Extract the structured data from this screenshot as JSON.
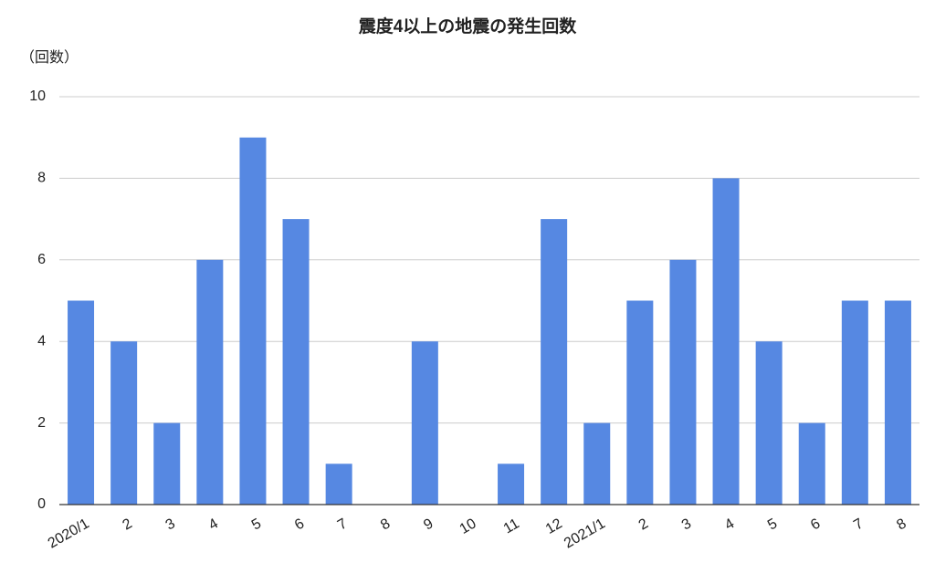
{
  "chart_data": {
    "type": "bar",
    "title": "震度4以上の地震の発生回数",
    "y_label": "（回数）",
    "categories": [
      "2020/1",
      "2",
      "3",
      "4",
      "5",
      "6",
      "7",
      "8",
      "9",
      "10",
      "11",
      "12",
      "2021/1",
      "2",
      "3",
      "4",
      "5",
      "6",
      "7",
      "8"
    ],
    "values": [
      5,
      4,
      2,
      6,
      9,
      7,
      1,
      0,
      4,
      0,
      1,
      7,
      2,
      5,
      6,
      8,
      4,
      2,
      5,
      5
    ],
    "color": "#5688e2",
    "ylim": [
      0,
      10
    ],
    "yticks": [
      0,
      2,
      4,
      6,
      8,
      10
    ],
    "grid": true
  }
}
